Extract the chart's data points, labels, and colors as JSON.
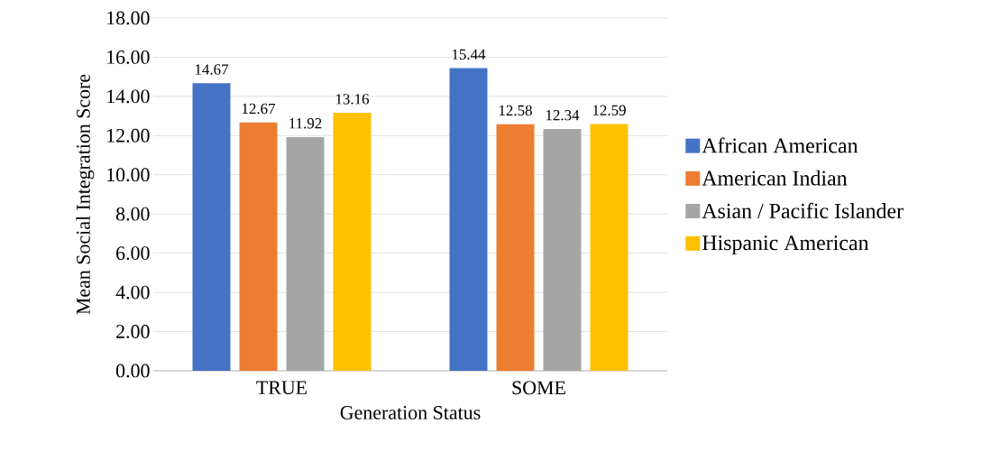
{
  "chart_data": {
    "type": "bar",
    "xlabel": "Generation Status",
    "ylabel": "Mean Social Integration Score",
    "categories": [
      "TRUE",
      "SOME"
    ],
    "series": [
      {
        "name": "African American",
        "color": "#4472c4",
        "values": [
          14.67,
          15.44
        ]
      },
      {
        "name": "American Indian",
        "color": "#ed7d31",
        "values": [
          12.67,
          12.58
        ]
      },
      {
        "name": "Asian / Pacific Islander",
        "color": "#a5a5a5",
        "values": [
          11.92,
          12.34
        ]
      },
      {
        "name": "Hispanic American",
        "color": "#ffc000",
        "values": [
          13.16,
          12.59
        ]
      }
    ],
    "ylim": [
      0,
      18
    ],
    "yticks": [
      {
        "value": 0,
        "label": "0.00"
      },
      {
        "value": 2,
        "label": "2.00"
      },
      {
        "value": 4,
        "label": "4.00"
      },
      {
        "value": 6,
        "label": "6.00"
      },
      {
        "value": 8,
        "label": "8.00"
      },
      {
        "value": 10,
        "label": "10.00"
      },
      {
        "value": 12,
        "label": "12.00"
      },
      {
        "value": 14,
        "label": "14.00"
      },
      {
        "value": 16,
        "label": "16.00"
      },
      {
        "value": 18,
        "label": "18.00"
      }
    ],
    "grid": "y",
    "legend": "right",
    "data_labels": true
  }
}
